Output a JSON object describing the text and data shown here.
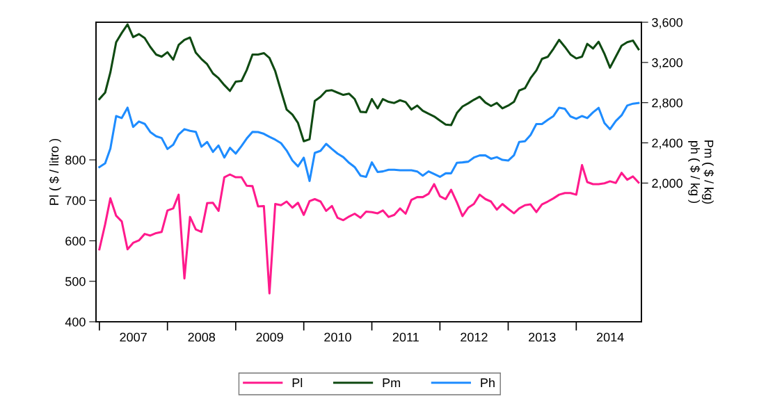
{
  "chart_data": {
    "type": "line",
    "ylabel": "Pl ( $ / litro )",
    "y2label": "Pm ( $ / kg)\nph ( $ / kg )",
    "x": [
      "2007-01",
      "2007-02",
      "2007-03",
      "2007-04",
      "2007-05",
      "2007-06",
      "2007-07",
      "2007-08",
      "2007-09",
      "2007-10",
      "2007-11",
      "2007-12",
      "2008-01",
      "2008-02",
      "2008-03",
      "2008-04",
      "2008-05",
      "2008-06",
      "2008-07",
      "2008-08",
      "2008-09",
      "2008-10",
      "2008-11",
      "2008-12",
      "2009-01",
      "2009-02",
      "2009-03",
      "2009-04",
      "2009-05",
      "2009-06",
      "2009-07",
      "2009-08",
      "2009-09",
      "2009-10",
      "2009-11",
      "2009-12",
      "2010-01",
      "2010-02",
      "2010-03",
      "2010-04",
      "2010-05",
      "2010-06",
      "2010-07",
      "2010-08",
      "2010-09",
      "2010-10",
      "2010-11",
      "2010-12",
      "2011-01",
      "2011-02",
      "2011-03",
      "2011-04",
      "2011-05",
      "2011-06",
      "2011-07",
      "2011-08",
      "2011-09",
      "2011-10",
      "2011-11",
      "2011-12",
      "2012-01",
      "2012-02",
      "2012-03",
      "2012-04",
      "2012-05",
      "2012-06",
      "2012-07",
      "2012-08",
      "2012-09",
      "2012-10",
      "2012-11",
      "2012-12",
      "2013-01",
      "2013-02",
      "2013-03",
      "2013-04",
      "2013-05",
      "2013-06",
      "2013-07",
      "2013-08",
      "2013-09",
      "2013-10",
      "2013-11",
      "2013-12",
      "2014-01",
      "2014-02",
      "2014-03",
      "2014-04",
      "2014-05",
      "2014-06",
      "2014-07",
      "2014-08",
      "2014-09",
      "2014-10",
      "2014-11",
      "2014-12"
    ],
    "series": [
      {
        "name": "Pl",
        "color": "#ff1a8c",
        "axis": "y",
        "values": [
          579,
          641,
          705,
          662,
          648,
          579,
          595,
          601,
          617,
          613,
          619,
          622,
          675,
          680,
          714,
          507,
          659,
          628,
          622,
          693,
          694,
          674,
          757,
          764,
          757,
          757,
          736,
          735,
          685,
          686,
          470,
          691,
          688,
          697,
          682,
          694,
          664,
          698,
          703,
          697,
          674,
          686,
          657,
          651,
          660,
          667,
          657,
          672,
          671,
          668,
          675,
          659,
          664,
          680,
          667,
          701,
          708,
          708,
          716,
          740,
          710,
          703,
          726,
          695,
          661,
          682,
          691,
          714,
          703,
          697,
          677,
          691,
          679,
          668,
          680,
          688,
          690,
          671,
          690,
          697,
          705,
          714,
          718,
          718,
          714,
          787,
          745,
          740,
          740,
          742,
          747,
          743,
          768,
          751,
          759,
          744
        ]
      },
      {
        "name": "Pm",
        "color": "#0f4a12",
        "axis": "y2",
        "values": [
          2836,
          2900,
          3101,
          3401,
          3494,
          3579,
          3452,
          3482,
          3443,
          3355,
          3279,
          3258,
          3302,
          3228,
          3374,
          3425,
          3448,
          3297,
          3235,
          3182,
          3090,
          3044,
          2975,
          2917,
          3009,
          3016,
          3124,
          3279,
          3279,
          3293,
          3245,
          3113,
          2917,
          2732,
          2681,
          2598,
          2416,
          2436,
          2817,
          2859,
          2917,
          2924,
          2900,
          2877,
          2889,
          2836,
          2709,
          2704,
          2836,
          2743,
          2836,
          2808,
          2797,
          2824,
          2806,
          2732,
          2771,
          2720,
          2690,
          2663,
          2621,
          2582,
          2577,
          2697,
          2762,
          2794,
          2829,
          2859,
          2801,
          2767,
          2797,
          2743,
          2771,
          2808,
          2921,
          2944,
          3044,
          3120,
          3235,
          3256,
          3337,
          3425,
          3355,
          3279,
          3240,
          3258,
          3385,
          3339,
          3406,
          3286,
          3148,
          3258,
          3367,
          3401,
          3418,
          3332
        ]
      },
      {
        "name": "Ph",
        "color": "#1e8cff",
        "axis": "y2",
        "values": [
          2159,
          2196,
          2344,
          2667,
          2647,
          2750,
          2559,
          2612,
          2589,
          2508,
          2466,
          2448,
          2339,
          2381,
          2483,
          2536,
          2520,
          2510,
          2362,
          2409,
          2310,
          2374,
          2254,
          2351,
          2293,
          2369,
          2443,
          2510,
          2508,
          2490,
          2460,
          2432,
          2397,
          2324,
          2224,
          2166,
          2252,
          2021,
          2300,
          2321,
          2390,
          2339,
          2293,
          2258,
          2201,
          2159,
          2074,
          2062,
          2206,
          2110,
          2116,
          2132,
          2132,
          2127,
          2127,
          2127,
          2116,
          2074,
          2116,
          2090,
          2062,
          2097,
          2097,
          2201,
          2206,
          2213,
          2254,
          2275,
          2275,
          2242,
          2258,
          2231,
          2224,
          2277,
          2409,
          2416,
          2478,
          2587,
          2587,
          2628,
          2667,
          2750,
          2739,
          2663,
          2640,
          2667,
          2647,
          2704,
          2748,
          2598,
          2536,
          2617,
          2674,
          2771,
          2790,
          2797
        ]
      }
    ],
    "xlim": [
      "2006-12-14",
      "2014-12-16"
    ],
    "xticks": [
      {
        "value": "2007-01-01",
        "label": null
      },
      {
        "value": "2007-07-02",
        "label": "2007"
      },
      {
        "value": "2008-01-01",
        "label": null
      },
      {
        "value": "2008-07-02",
        "label": "2008"
      },
      {
        "value": "2009-01-01",
        "label": null
      },
      {
        "value": "2009-07-02",
        "label": "2009"
      },
      {
        "value": "2010-01-01",
        "label": null
      },
      {
        "value": "2010-07-02",
        "label": "2010"
      },
      {
        "value": "2011-01-01",
        "label": null
      },
      {
        "value": "2011-07-02",
        "label": "2011"
      },
      {
        "value": "2012-01-01",
        "label": null
      },
      {
        "value": "2012-07-02",
        "label": "2012"
      },
      {
        "value": "2013-01-01",
        "label": null
      },
      {
        "value": "2013-07-02",
        "label": "2013"
      },
      {
        "value": "2014-01-01",
        "label": null
      },
      {
        "value": "2014-07-02",
        "label": "2014"
      }
    ],
    "ylim": [
      400,
      1140
    ],
    "yticks": [
      400,
      500,
      600,
      700,
      800
    ],
    "y2lim": [
      620,
      3600
    ],
    "y2ticks": [
      {
        "value": 2000,
        "label": "2,000"
      },
      {
        "value": 2400,
        "label": "2,400"
      },
      {
        "value": 2800,
        "label": "2,800"
      },
      {
        "value": 3200,
        "label": "3,200"
      },
      {
        "value": 3600,
        "label": "3,600"
      }
    ],
    "legend": "bottom",
    "grid": false,
    "line_style": "solid"
  }
}
